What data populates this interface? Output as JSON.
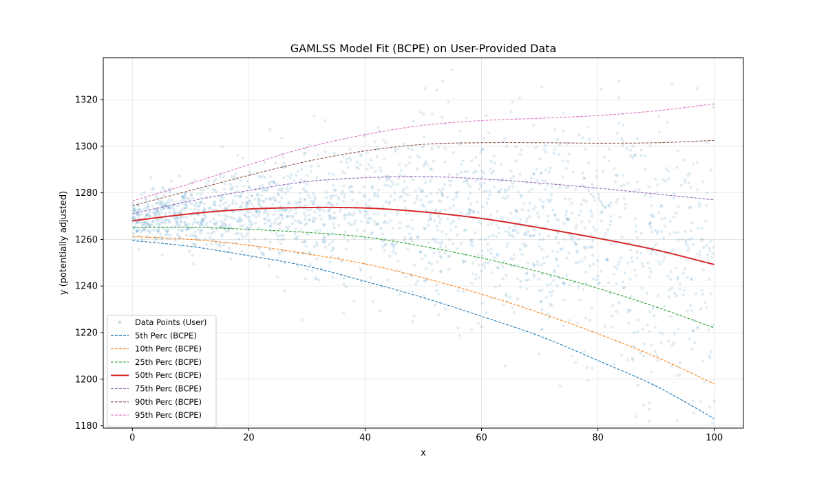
{
  "chart_data": {
    "type": "line",
    "title": "GAMLSS Model Fit (BCPE) on User-Provided Data",
    "xlabel": "x",
    "ylabel": "y (potentially adjusted)",
    "xlim": [
      -5,
      105
    ],
    "ylim": [
      1179,
      1338
    ],
    "x_ticks": [
      0,
      20,
      40,
      60,
      80,
      100
    ],
    "y_ticks": [
      1180,
      1200,
      1220,
      1240,
      1260,
      1280,
      1300,
      1320
    ],
    "grid": true,
    "legend_position": "lower-left",
    "x": [
      0,
      10,
      20,
      30,
      40,
      50,
      60,
      70,
      80,
      90,
      100
    ],
    "scatter": {
      "name": "Data Points (User)",
      "color": "#1f77b4",
      "count": 2000
    },
    "series": [
      {
        "name": "5th Perc (BCPE)",
        "color": "#1f77b4",
        "style": "dashed",
        "values": [
          1259.5,
          1257,
          1253,
          1248.5,
          1242,
          1235,
          1227,
          1218.5,
          1208,
          1197,
          1183
        ]
      },
      {
        "name": "10th Perc (BCPE)",
        "color": "#ff7f0e",
        "style": "dashed",
        "values": [
          1261.2,
          1260,
          1257.5,
          1253.8,
          1249.5,
          1243.5,
          1236.5,
          1228.5,
          1219.5,
          1209.5,
          1198
        ]
      },
      {
        "name": "25th Perc (BCPE)",
        "color": "#2ca02c",
        "style": "dashed",
        "values": [
          1265,
          1265.2,
          1264.3,
          1263,
          1261,
          1257,
          1252,
          1246,
          1239,
          1231,
          1222
        ]
      },
      {
        "name": "50th Perc (BCPE)",
        "color": "#d62728",
        "style": "solid",
        "values": [
          1268,
          1271,
          1273,
          1273.7,
          1273.5,
          1271.8,
          1269,
          1265,
          1260.5,
          1255.5,
          1249.2
        ]
      },
      {
        "name": "75th Perc (BCPE)",
        "color": "#9467bd",
        "style": "dashed",
        "values": [
          1271,
          1276.5,
          1281,
          1284.8,
          1286.5,
          1287,
          1286,
          1284.2,
          1282,
          1279.5,
          1277
        ]
      },
      {
        "name": "90th Perc (BCPE)",
        "color": "#8c564b",
        "style": "dashed",
        "values": [
          1274.5,
          1281,
          1287.5,
          1293.5,
          1298,
          1300.8,
          1301.5,
          1301.5,
          1301.3,
          1301.5,
          1302.5
        ]
      },
      {
        "name": "95th Perc (BCPE)",
        "color": "#e377c2",
        "style": "dashed",
        "values": [
          1276.5,
          1284,
          1292,
          1299.5,
          1305,
          1309,
          1311,
          1312,
          1313.2,
          1315.2,
          1318.2
        ]
      }
    ]
  }
}
